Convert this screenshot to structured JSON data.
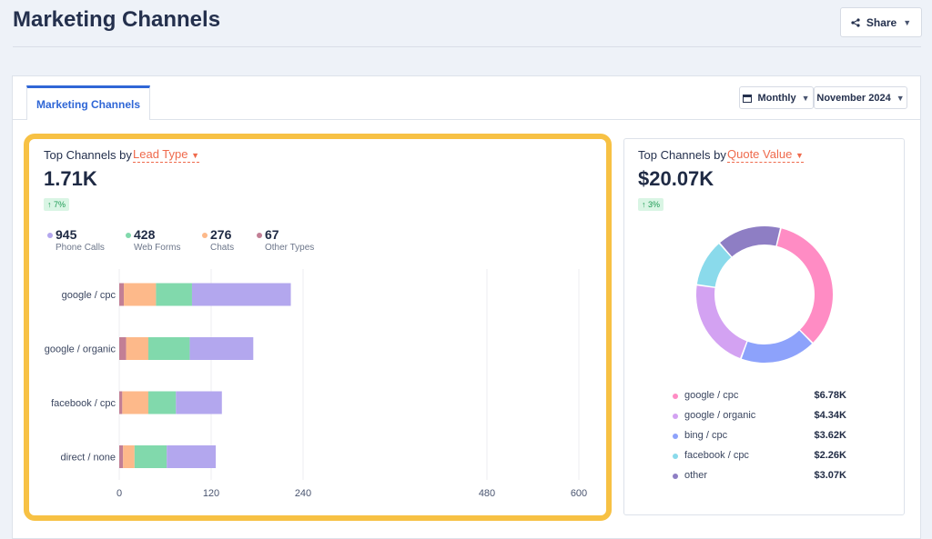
{
  "header": {
    "title": "Marketing Channels",
    "share_label": "Share"
  },
  "tabs": [
    {
      "label": "Marketing Channels",
      "active": true
    }
  ],
  "period": {
    "granularity": "Monthly",
    "month": "November 2024"
  },
  "lead_panel": {
    "prefix": "Top Channels by",
    "metric": "Lead Type",
    "total": "1.71K",
    "delta": "↑ 7%",
    "stats": [
      {
        "value": "945",
        "label": "Phone Calls",
        "color": "#b3a7ee"
      },
      {
        "value": "428",
        "label": "Web Forms",
        "color": "#81d9ac"
      },
      {
        "value": "276",
        "label": "Chats",
        "color": "#fdb98a"
      },
      {
        "value": "67",
        "label": "Other Types",
        "color": "#c27f95"
      }
    ]
  },
  "quote_panel": {
    "prefix": "Top Channels by",
    "metric": "Quote Value",
    "total": "$20.07K",
    "delta": "↑ 3%",
    "legend": [
      {
        "label": "google / cpc",
        "value": "$6.78K",
        "color": "#ff8cc4"
      },
      {
        "label": "google / organic",
        "value": "$4.34K",
        "color": "#d3a2f2"
      },
      {
        "label": "bing / cpc",
        "value": "$3.62K",
        "color": "#8da2fb"
      },
      {
        "label": "facebook / cpc",
        "value": "$2.26K",
        "color": "#8adaeb"
      },
      {
        "label": "other",
        "value": "$3.07K",
        "color": "#8e7ec4"
      }
    ]
  },
  "chart_data": [
    {
      "type": "bar",
      "orientation": "horizontal",
      "stacked": true,
      "title": "Top Channels by Lead Type",
      "categories": [
        "google / cpc",
        "google / organic",
        "facebook / cpc",
        "direct / none"
      ],
      "series": [
        {
          "name": "Other Types",
          "color": "#c27f95",
          "values": [
            6,
            9,
            4,
            5
          ]
        },
        {
          "name": "Chats",
          "color": "#fdb98a",
          "values": [
            42,
            29,
            34,
            15
          ]
        },
        {
          "name": "Web Forms",
          "color": "#81d9ac",
          "values": [
            47,
            54,
            36,
            42
          ]
        },
        {
          "name": "Phone Calls",
          "color": "#b3a7ee",
          "values": [
            129,
            83,
            60,
            64
          ]
        }
      ],
      "xlim": [
        0,
        600
      ],
      "xticks": [
        "0",
        "120",
        "240",
        "480",
        "600"
      ],
      "grid": true
    },
    {
      "type": "pie",
      "donut": true,
      "title": "Top Channels by Quote Value",
      "labels": [
        "google / cpc",
        "bing / cpc",
        "google / organic",
        "facebook / cpc",
        "other"
      ],
      "values": [
        6.78,
        3.62,
        4.34,
        2.26,
        3.07
      ],
      "colors": [
        "#ff8cc4",
        "#8da2fb",
        "#d3a2f2",
        "#8adaeb",
        "#8e7ec4"
      ]
    }
  ]
}
